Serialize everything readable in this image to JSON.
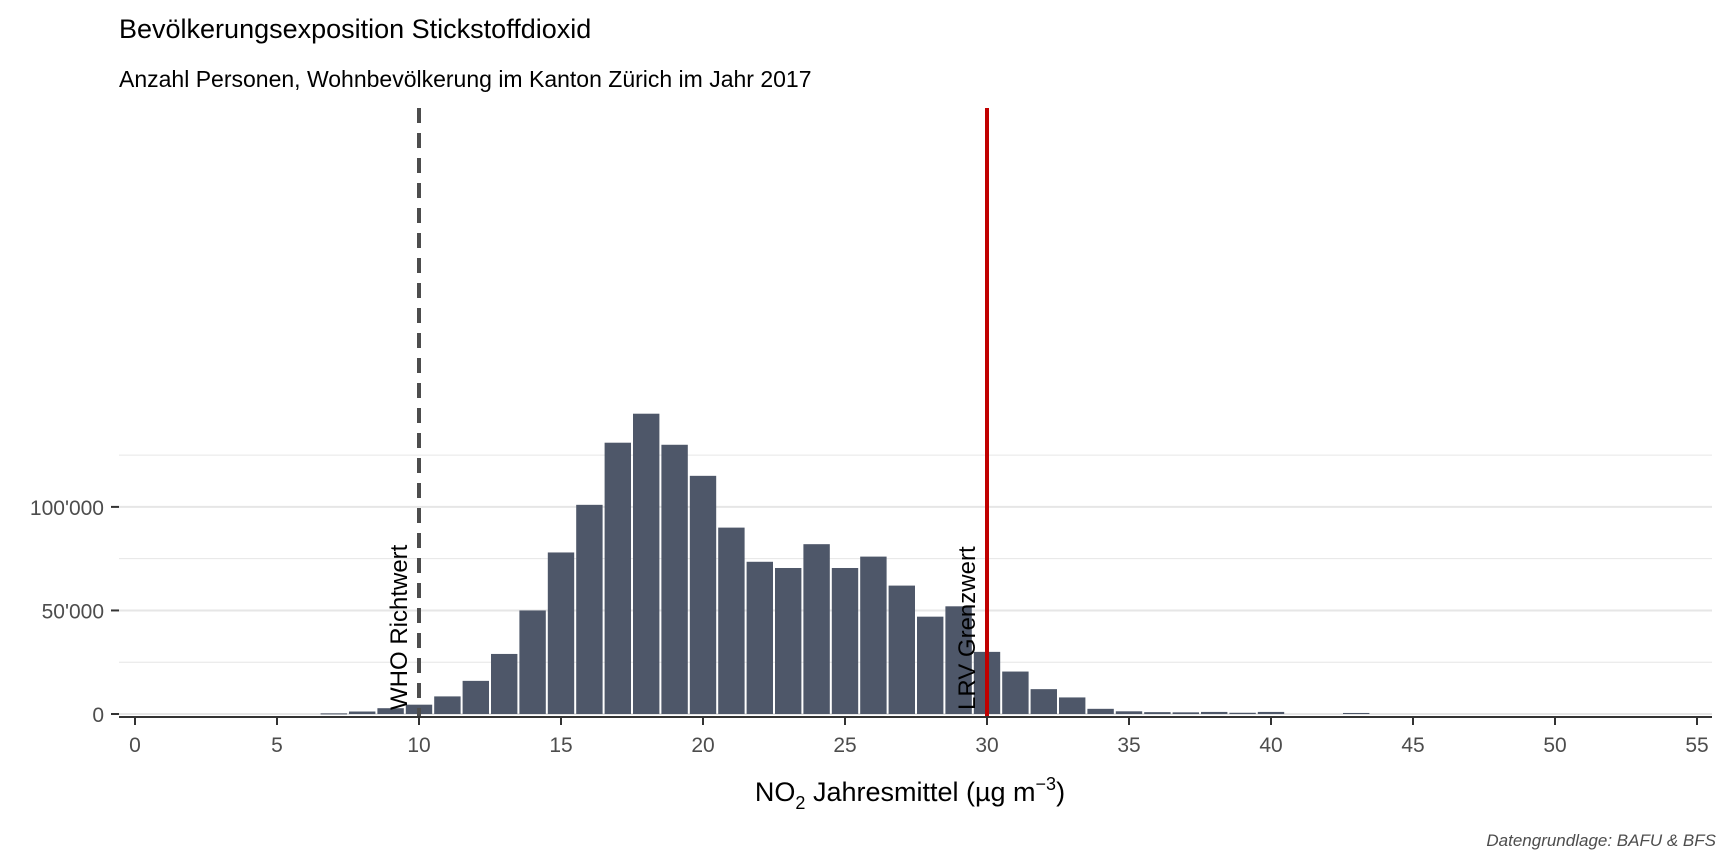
{
  "colors": {
    "bar": "#4e5769",
    "grid": "#e6e6e6",
    "axis": "#333333",
    "who_line": "#4d4d4d",
    "lrv_line": "#c00000"
  },
  "chart_data": {
    "type": "bar",
    "title": "Bevölkerungsexposition Stickstoffdioxid",
    "subtitle": "Anzahl Personen, Wohnbevölkerung im Kanton Zürich im Jahr 2017",
    "xlabel": {
      "main": "NO",
      "sub": "2",
      "rest": " Jahresmittel (µg m",
      "sup": "−3",
      "close": ")"
    },
    "caption": "Datengrundlage: BAFU & BFS",
    "xlim": [
      0,
      55
    ],
    "ylim": [
      0,
      146000
    ],
    "x_ticks": [
      0,
      5,
      10,
      15,
      20,
      25,
      30,
      35,
      40,
      45,
      50,
      55
    ],
    "x_tick_labels": [
      "0",
      "5",
      "10",
      "15",
      "20",
      "25",
      "30",
      "35",
      "40",
      "45",
      "50",
      "55"
    ],
    "y_ticks": [
      0,
      50000,
      100000
    ],
    "y_tick_labels": [
      "0",
      "50'000",
      "100'000"
    ],
    "y_minor_ticks": [
      25000,
      75000,
      125000
    ],
    "bin_width": 1,
    "x": [
      7,
      8,
      9,
      10,
      11,
      12,
      13,
      14,
      15,
      16,
      17,
      18,
      19,
      20,
      21,
      22,
      23,
      24,
      25,
      26,
      27,
      28,
      29,
      30,
      31,
      32,
      33,
      34,
      35,
      36,
      37,
      38,
      39,
      40,
      43
    ],
    "values": [
      300,
      1200,
      2800,
      4500,
      8500,
      16000,
      29000,
      50000,
      78000,
      101000,
      131000,
      145000,
      130000,
      115000,
      90000,
      73500,
      70500,
      82000,
      70500,
      76000,
      62000,
      47000,
      52000,
      30000,
      20500,
      12000,
      8000,
      2500,
      1300,
      900,
      800,
      1000,
      600,
      1000,
      500
    ],
    "reference_lines": [
      {
        "x": 10,
        "label": "WHO Richtwert",
        "style": "dashed"
      },
      {
        "x": 30,
        "label": "LRV Grenzwert",
        "style": "solid"
      }
    ],
    "grid": true,
    "legend": "none"
  }
}
